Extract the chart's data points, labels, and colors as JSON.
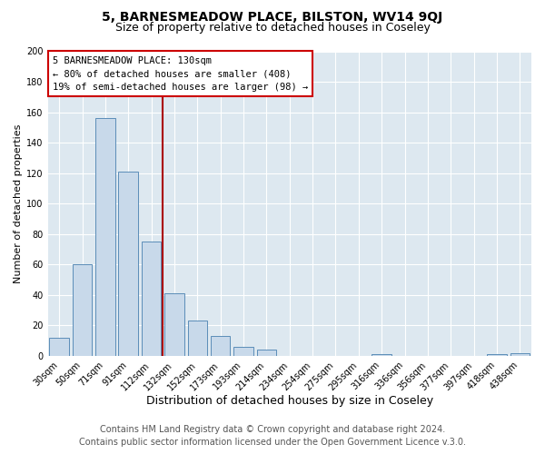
{
  "title": "5, BARNESMEADOW PLACE, BILSTON, WV14 9QJ",
  "subtitle": "Size of property relative to detached houses in Coseley",
  "xlabel": "Distribution of detached houses by size in Coseley",
  "ylabel": "Number of detached properties",
  "bar_labels": [
    "30sqm",
    "50sqm",
    "71sqm",
    "91sqm",
    "112sqm",
    "132sqm",
    "152sqm",
    "173sqm",
    "193sqm",
    "214sqm",
    "234sqm",
    "254sqm",
    "275sqm",
    "295sqm",
    "316sqm",
    "336sqm",
    "356sqm",
    "377sqm",
    "397sqm",
    "418sqm",
    "438sqm"
  ],
  "bar_values": [
    12,
    60,
    156,
    121,
    75,
    41,
    23,
    13,
    6,
    4,
    0,
    0,
    0,
    0,
    1,
    0,
    0,
    0,
    0,
    1,
    2
  ],
  "bar_color": "#c8d9ea",
  "bar_edge_color": "#5b8db8",
  "vline_x_index": 5,
  "vline_color": "#aa0000",
  "ylim": [
    0,
    200
  ],
  "yticks": [
    0,
    20,
    40,
    60,
    80,
    100,
    120,
    140,
    160,
    180,
    200
  ],
  "annotation_title": "5 BARNESMEADOW PLACE: 130sqm",
  "annotation_line1": "← 80% of detached houses are smaller (408)",
  "annotation_line2": "19% of semi-detached houses are larger (98) →",
  "annotation_box_color": "#ffffff",
  "annotation_box_edge": "#cc0000",
  "footer_line1": "Contains HM Land Registry data © Crown copyright and database right 2024.",
  "footer_line2": "Contains public sector information licensed under the Open Government Licence v.3.0.",
  "fig_bg_color": "#ffffff",
  "plot_bg_color": "#dde8f0",
  "grid_color": "#ffffff",
  "title_fontsize": 10,
  "subtitle_fontsize": 9,
  "xlabel_fontsize": 9,
  "ylabel_fontsize": 8,
  "tick_fontsize": 7,
  "footer_fontsize": 7,
  "annotation_fontsize": 7.5
}
